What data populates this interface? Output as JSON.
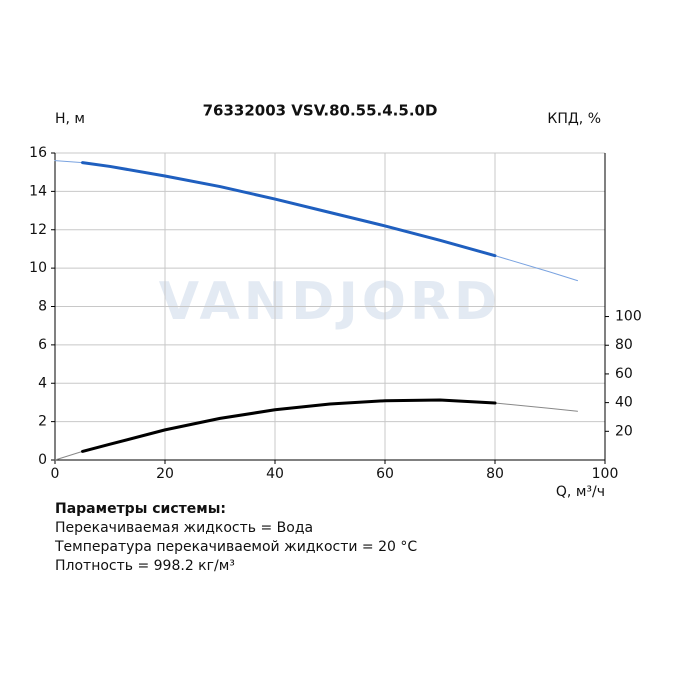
{
  "chart_data": {
    "type": "line",
    "title": "76332003 VSV.80.55.4.5.0D",
    "watermark": "VANDJORD",
    "y_label": "H, м",
    "y2_label": "КПД, %",
    "x_label": "Q, м³/ч",
    "x": [
      0,
      5,
      10,
      20,
      30,
      40,
      50,
      60,
      70,
      80,
      90,
      95
    ],
    "series": [
      {
        "color": "#7aa3e0",
        "width": 1,
        "values": [
          15.6,
          15.5,
          null,
          null,
          null,
          null,
          null,
          null,
          null,
          10.65,
          9.8,
          9.35
        ]
      },
      {
        "color": "#1f5fbf",
        "width": 3,
        "values": [
          null,
          15.5,
          15.3,
          14.8,
          14.25,
          13.6,
          12.9,
          12.2,
          11.45,
          10.65,
          null,
          null
        ]
      },
      {
        "color": "#888888",
        "width": 1,
        "axis": "y2",
        "values": [
          0,
          6,
          null,
          null,
          null,
          null,
          null,
          null,
          null,
          39.7,
          36,
          34
        ]
      },
      {
        "color": "#000000",
        "width": 3,
        "axis": "y2",
        "values": [
          null,
          6,
          11,
          21,
          29,
          35,
          39,
          41.3,
          41.8,
          39.7,
          null,
          null
        ]
      }
    ],
    "xlim": [
      0,
      100
    ],
    "xticks": [
      0,
      20,
      40,
      60,
      80,
      100
    ],
    "ylim": [
      0,
      16
    ],
    "yticks": [
      0,
      2,
      4,
      6,
      8,
      10,
      12,
      14,
      16
    ],
    "y2lim": [
      0,
      214
    ],
    "y2ticks": [
      20,
      40,
      60,
      80,
      100
    ],
    "grid": true
  },
  "parameters": {
    "title": "Параметры системы:",
    "lines": [
      "Перекачиваемая жидкость = Вода",
      "Температура перекачиваемой жидкости = 20 °C",
      "Плотность = 998.2 кг/м³"
    ]
  }
}
